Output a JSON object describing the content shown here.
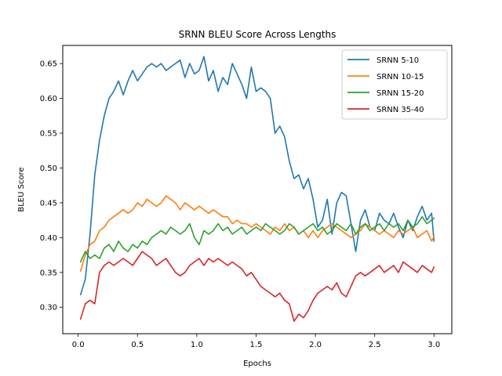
{
  "chart_data": {
    "type": "line",
    "title": "SRNN BLEU Score Across Lengths",
    "xlabel": "Epochs",
    "ylabel": "BLEU Score",
    "xlim": [
      -0.13,
      3.15
    ],
    "ylim": [
      0.262,
      0.676
    ],
    "xticks": [
      0.0,
      0.5,
      1.0,
      1.5,
      2.0,
      2.5,
      3.0
    ],
    "xtick_labels": [
      "0.0",
      "0.5",
      "1.0",
      "1.5",
      "2.0",
      "2.5",
      "3.0"
    ],
    "yticks": [
      0.3,
      0.35,
      0.4,
      0.45,
      0.5,
      0.55,
      0.6,
      0.65
    ],
    "ytick_labels": [
      "0.30",
      "0.35",
      "0.40",
      "0.45",
      "0.50",
      "0.55",
      "0.60",
      "0.65"
    ],
    "grid": false,
    "legend_position": "top-right",
    "series": [
      {
        "name": "SRNN 5-10",
        "color": "#1f77b4",
        "x": [
          0.02,
          0.06,
          0.1,
          0.14,
          0.18,
          0.22,
          0.26,
          0.3,
          0.34,
          0.38,
          0.42,
          0.46,
          0.5,
          0.54,
          0.58,
          0.62,
          0.66,
          0.7,
          0.74,
          0.78,
          0.82,
          0.86,
          0.9,
          0.94,
          0.98,
          1.02,
          1.06,
          1.1,
          1.14,
          1.18,
          1.22,
          1.26,
          1.3,
          1.34,
          1.38,
          1.42,
          1.46,
          1.5,
          1.54,
          1.58,
          1.62,
          1.66,
          1.7,
          1.74,
          1.78,
          1.82,
          1.86,
          1.9,
          1.94,
          1.98,
          2.02,
          2.06,
          2.1,
          2.14,
          2.18,
          2.22,
          2.26,
          2.3,
          2.34,
          2.38,
          2.42,
          2.46,
          2.5,
          2.54,
          2.58,
          2.62,
          2.66,
          2.7,
          2.74,
          2.78,
          2.82,
          2.86,
          2.9,
          2.94,
          2.98,
          3.0
        ],
        "y": [
          0.318,
          0.34,
          0.405,
          0.49,
          0.54,
          0.575,
          0.6,
          0.61,
          0.625,
          0.605,
          0.625,
          0.64,
          0.625,
          0.635,
          0.645,
          0.65,
          0.645,
          0.65,
          0.64,
          0.645,
          0.65,
          0.655,
          0.63,
          0.65,
          0.635,
          0.64,
          0.66,
          0.625,
          0.64,
          0.61,
          0.63,
          0.62,
          0.65,
          0.635,
          0.62,
          0.6,
          0.645,
          0.61,
          0.615,
          0.61,
          0.6,
          0.55,
          0.56,
          0.545,
          0.51,
          0.485,
          0.49,
          0.47,
          0.485,
          0.455,
          0.415,
          0.425,
          0.455,
          0.405,
          0.45,
          0.465,
          0.46,
          0.42,
          0.38,
          0.425,
          0.44,
          0.415,
          0.41,
          0.435,
          0.425,
          0.42,
          0.435,
          0.415,
          0.4,
          0.425,
          0.41,
          0.43,
          0.445,
          0.425,
          0.435,
          0.395
        ]
      },
      {
        "name": "SRNN 10-15",
        "color": "#ff7f0e",
        "x": [
          0.02,
          0.06,
          0.1,
          0.14,
          0.18,
          0.22,
          0.26,
          0.3,
          0.34,
          0.38,
          0.42,
          0.46,
          0.5,
          0.54,
          0.58,
          0.62,
          0.66,
          0.7,
          0.74,
          0.78,
          0.82,
          0.86,
          0.9,
          0.94,
          0.98,
          1.02,
          1.06,
          1.1,
          1.14,
          1.18,
          1.22,
          1.26,
          1.3,
          1.34,
          1.38,
          1.42,
          1.46,
          1.5,
          1.54,
          1.58,
          1.62,
          1.66,
          1.7,
          1.74,
          1.78,
          1.82,
          1.86,
          1.9,
          1.94,
          1.98,
          2.02,
          2.06,
          2.1,
          2.14,
          2.18,
          2.22,
          2.26,
          2.3,
          2.34,
          2.38,
          2.42,
          2.46,
          2.5,
          2.54,
          2.58,
          2.62,
          2.66,
          2.7,
          2.74,
          2.78,
          2.82,
          2.86,
          2.9,
          2.94,
          2.98,
          3.0
        ],
        "y": [
          0.352,
          0.375,
          0.39,
          0.395,
          0.41,
          0.415,
          0.425,
          0.43,
          0.435,
          0.44,
          0.435,
          0.44,
          0.45,
          0.445,
          0.455,
          0.45,
          0.445,
          0.45,
          0.46,
          0.455,
          0.45,
          0.44,
          0.45,
          0.445,
          0.44,
          0.445,
          0.44,
          0.435,
          0.44,
          0.435,
          0.43,
          0.43,
          0.42,
          0.425,
          0.42,
          0.42,
          0.415,
          0.42,
          0.415,
          0.41,
          0.405,
          0.415,
          0.41,
          0.42,
          0.41,
          0.415,
          0.405,
          0.41,
          0.4,
          0.41,
          0.4,
          0.41,
          0.415,
          0.42,
          0.415,
          0.41,
          0.405,
          0.4,
          0.405,
          0.41,
          0.42,
          0.415,
          0.41,
          0.405,
          0.41,
          0.405,
          0.4,
          0.41,
          0.405,
          0.41,
          0.415,
          0.4,
          0.405,
          0.41,
          0.395,
          0.402
        ]
      },
      {
        "name": "SRNN 15-20",
        "color": "#2ca02c",
        "x": [
          0.02,
          0.06,
          0.1,
          0.14,
          0.18,
          0.22,
          0.26,
          0.3,
          0.34,
          0.38,
          0.42,
          0.46,
          0.5,
          0.54,
          0.58,
          0.62,
          0.66,
          0.7,
          0.74,
          0.78,
          0.82,
          0.86,
          0.9,
          0.94,
          0.98,
          1.02,
          1.06,
          1.1,
          1.14,
          1.18,
          1.22,
          1.26,
          1.3,
          1.34,
          1.38,
          1.42,
          1.46,
          1.5,
          1.54,
          1.58,
          1.62,
          1.66,
          1.7,
          1.74,
          1.78,
          1.82,
          1.86,
          1.9,
          1.94,
          1.98,
          2.02,
          2.06,
          2.1,
          2.14,
          2.18,
          2.22,
          2.26,
          2.3,
          2.34,
          2.38,
          2.42,
          2.46,
          2.5,
          2.54,
          2.58,
          2.62,
          2.66,
          2.7,
          2.74,
          2.78,
          2.82,
          2.86,
          2.9,
          2.94,
          2.98,
          3.0
        ],
        "y": [
          0.365,
          0.38,
          0.37,
          0.375,
          0.37,
          0.385,
          0.39,
          0.38,
          0.395,
          0.385,
          0.38,
          0.39,
          0.385,
          0.395,
          0.39,
          0.4,
          0.405,
          0.41,
          0.405,
          0.415,
          0.41,
          0.405,
          0.41,
          0.42,
          0.4,
          0.39,
          0.41,
          0.405,
          0.41,
          0.42,
          0.41,
          0.415,
          0.405,
          0.41,
          0.415,
          0.405,
          0.41,
          0.415,
          0.41,
          0.42,
          0.415,
          0.41,
          0.405,
          0.41,
          0.42,
          0.415,
          0.405,
          0.41,
          0.415,
          0.42,
          0.41,
          0.415,
          0.405,
          0.41,
          0.42,
          0.415,
          0.41,
          0.42,
          0.405,
          0.415,
          0.42,
          0.41,
          0.415,
          0.42,
          0.41,
          0.42,
          0.415,
          0.42,
          0.41,
          0.425,
          0.415,
          0.42,
          0.43,
          0.42,
          0.425,
          0.428
        ]
      },
      {
        "name": "SRNN 35-40",
        "color": "#d62728",
        "x": [
          0.02,
          0.06,
          0.1,
          0.14,
          0.18,
          0.22,
          0.26,
          0.3,
          0.34,
          0.38,
          0.42,
          0.46,
          0.5,
          0.54,
          0.58,
          0.62,
          0.66,
          0.7,
          0.74,
          0.78,
          0.82,
          0.86,
          0.9,
          0.94,
          0.98,
          1.02,
          1.06,
          1.1,
          1.14,
          1.18,
          1.22,
          1.26,
          1.3,
          1.34,
          1.38,
          1.42,
          1.46,
          1.5,
          1.54,
          1.58,
          1.62,
          1.66,
          1.7,
          1.74,
          1.78,
          1.82,
          1.86,
          1.9,
          1.94,
          1.98,
          2.02,
          2.06,
          2.1,
          2.14,
          2.18,
          2.22,
          2.26,
          2.3,
          2.34,
          2.38,
          2.42,
          2.46,
          2.5,
          2.54,
          2.58,
          2.62,
          2.66,
          2.7,
          2.74,
          2.78,
          2.82,
          2.86,
          2.9,
          2.94,
          2.98,
          3.0
        ],
        "y": [
          0.283,
          0.305,
          0.31,
          0.305,
          0.35,
          0.36,
          0.365,
          0.36,
          0.365,
          0.37,
          0.365,
          0.36,
          0.37,
          0.38,
          0.375,
          0.37,
          0.36,
          0.365,
          0.37,
          0.36,
          0.35,
          0.345,
          0.35,
          0.36,
          0.365,
          0.37,
          0.36,
          0.37,
          0.365,
          0.37,
          0.365,
          0.36,
          0.365,
          0.36,
          0.355,
          0.345,
          0.35,
          0.34,
          0.33,
          0.325,
          0.32,
          0.315,
          0.32,
          0.31,
          0.305,
          0.28,
          0.29,
          0.285,
          0.295,
          0.31,
          0.32,
          0.325,
          0.33,
          0.325,
          0.335,
          0.32,
          0.315,
          0.33,
          0.345,
          0.35,
          0.345,
          0.35,
          0.355,
          0.36,
          0.35,
          0.355,
          0.36,
          0.35,
          0.365,
          0.36,
          0.355,
          0.35,
          0.36,
          0.355,
          0.35,
          0.358
        ]
      }
    ]
  }
}
